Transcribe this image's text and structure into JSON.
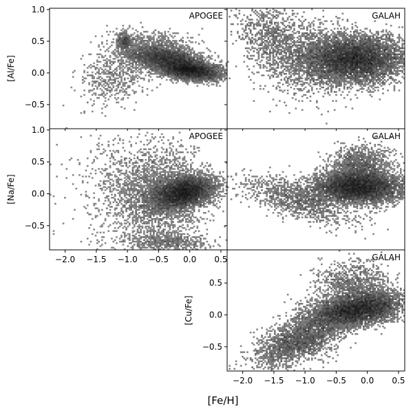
{
  "figure": {
    "xlabel": "[Fe/H]"
  },
  "chart_data": [
    {
      "type": "heatmap",
      "panel": "apogee-al",
      "survey": "APOGEE",
      "ylabel": "[Al/Fe]",
      "xlim": [
        -2.25,
        0.6
      ],
      "ylim": [
        -0.88,
        1.02
      ],
      "x_ticks": [],
      "y_ticks": [
        -0.5,
        0.0,
        0.5,
        1.0
      ],
      "show_xticklabels": false,
      "show_yticklabels": true,
      "x_tick_labels": [],
      "y_tick_labels": [
        "−0.5",
        "0.0",
        "0.5",
        "1.0"
      ],
      "density_clusters": [
        {
          "x": -0.35,
          "y": 0.22,
          "sx": 0.32,
          "sy": 0.09,
          "w": 2.2,
          "rot": -0.15
        },
        {
          "x": 0.0,
          "y": 0.04,
          "sx": 0.25,
          "sy": 0.07,
          "w": 2.4,
          "rot": -0.1
        },
        {
          "x": -1.15,
          "y": 0.0,
          "sx": 0.35,
          "sy": 0.22,
          "w": 0.4,
          "rot": 0.5
        },
        {
          "x": -1.05,
          "y": 0.5,
          "sx": 0.06,
          "sy": 0.07,
          "w": 0.2,
          "rot": 0
        },
        {
          "x": -0.6,
          "y": 0.45,
          "sx": 0.3,
          "sy": 0.1,
          "w": 0.3,
          "rot": 0
        }
      ]
    },
    {
      "type": "heatmap",
      "panel": "galah-al",
      "survey": "GALAH",
      "ylabel": "",
      "xlim": [
        -2.25,
        0.6
      ],
      "ylim": [
        -0.88,
        1.02
      ],
      "x_ticks": [],
      "y_ticks": [
        -0.5,
        0.0,
        0.5,
        1.0
      ],
      "show_xticklabels": false,
      "show_yticklabels": false,
      "x_tick_labels": [],
      "y_tick_labels": [],
      "density_clusters": [
        {
          "x": -0.2,
          "y": 0.22,
          "sx": 0.4,
          "sy": 0.18,
          "w": 2.5,
          "rot": 0
        },
        {
          "x": -1.5,
          "y": 0.55,
          "sx": 0.35,
          "sy": 0.25,
          "w": 0.35,
          "rot": -0.6
        },
        {
          "x": -0.9,
          "y": 0.2,
          "sx": 0.4,
          "sy": 0.3,
          "w": 0.4,
          "rot": 0
        }
      ]
    },
    {
      "type": "heatmap",
      "panel": "apogee-na",
      "survey": "APOGEE",
      "ylabel": "[Na/Fe]",
      "xlim": [
        -2.25,
        0.6
      ],
      "ylim": [
        -0.88,
        1.02
      ],
      "x_ticks": [
        -2.0,
        -1.5,
        -1.0,
        -0.5,
        0.0,
        0.5
      ],
      "y_ticks": [
        -0.5,
        0.0,
        0.5,
        1.0
      ],
      "show_xticklabels": true,
      "show_yticklabels": true,
      "x_tick_labels": [
        "−2.0",
        "−1.5",
        "−1.0",
        "−0.5",
        "0.0",
        "0.5"
      ],
      "y_tick_labels": [
        "−0.5",
        "0.0",
        "0.5",
        "1.0"
      ],
      "density_clusters": [
        {
          "x": -0.1,
          "y": 0.02,
          "sx": 0.25,
          "sy": 0.12,
          "w": 2.4,
          "rot": 0.2
        },
        {
          "x": -0.5,
          "y": 0.0,
          "sx": 0.35,
          "sy": 0.35,
          "w": 0.9,
          "rot": 0
        },
        {
          "x": -1.0,
          "y": 0.1,
          "sx": 0.5,
          "sy": 0.45,
          "w": 0.25,
          "rot": 0
        },
        {
          "x": -0.4,
          "y": -0.75,
          "sx": 0.35,
          "sy": 0.08,
          "w": 0.25,
          "rot": 0
        }
      ]
    },
    {
      "type": "heatmap",
      "panel": "galah-na",
      "survey": "GALAH",
      "ylabel": "",
      "xlim": [
        -2.25,
        0.6
      ],
      "ylim": [
        -0.88,
        1.02
      ],
      "x_ticks": [],
      "y_ticks": [
        -0.5,
        0.0,
        0.5,
        1.0
      ],
      "show_xticklabels": false,
      "show_yticklabels": false,
      "x_tick_labels": [],
      "y_tick_labels": [],
      "density_clusters": [
        {
          "x": -0.15,
          "y": 0.1,
          "sx": 0.35,
          "sy": 0.12,
          "w": 2.5,
          "rot": 0
        },
        {
          "x": -0.1,
          "y": 0.4,
          "sx": 0.25,
          "sy": 0.18,
          "w": 0.6,
          "rot": 0
        },
        {
          "x": -1.1,
          "y": -0.1,
          "sx": 0.45,
          "sy": 0.13,
          "w": 0.5,
          "rot": -0.3
        }
      ]
    },
    {
      "type": "heatmap",
      "panel": "galah-cu",
      "survey": "GALAH",
      "ylabel": "[Cu/Fe]",
      "xlim": [
        -2.25,
        0.6
      ],
      "ylim": [
        -0.88,
        1.02
      ],
      "x_ticks": [
        -2.0,
        -1.5,
        -1.0,
        -0.5,
        0.0,
        0.5
      ],
      "y_ticks": [
        -0.5,
        0.0,
        0.5
      ],
      "show_xticklabels": true,
      "show_yticklabels": true,
      "x_tick_labels": [
        "−2.0",
        "−1.5",
        "−1.0",
        "−0.5",
        "0.0",
        "0.5"
      ],
      "y_tick_labels": [
        "−0.5",
        "0.0",
        "0.5"
      ],
      "density_clusters": [
        {
          "x": -0.15,
          "y": 0.08,
          "sx": 0.35,
          "sy": 0.12,
          "w": 2.5,
          "rot": 0.15
        },
        {
          "x": -0.2,
          "y": 0.45,
          "sx": 0.3,
          "sy": 0.2,
          "w": 0.5,
          "rot": 0
        },
        {
          "x": -1.2,
          "y": -0.45,
          "sx": 0.35,
          "sy": 0.15,
          "w": 0.8,
          "rot": 0.4
        },
        {
          "x": -0.8,
          "y": -0.2,
          "sx": 0.3,
          "sy": 0.2,
          "w": 0.5,
          "rot": 0.6
        }
      ]
    }
  ]
}
